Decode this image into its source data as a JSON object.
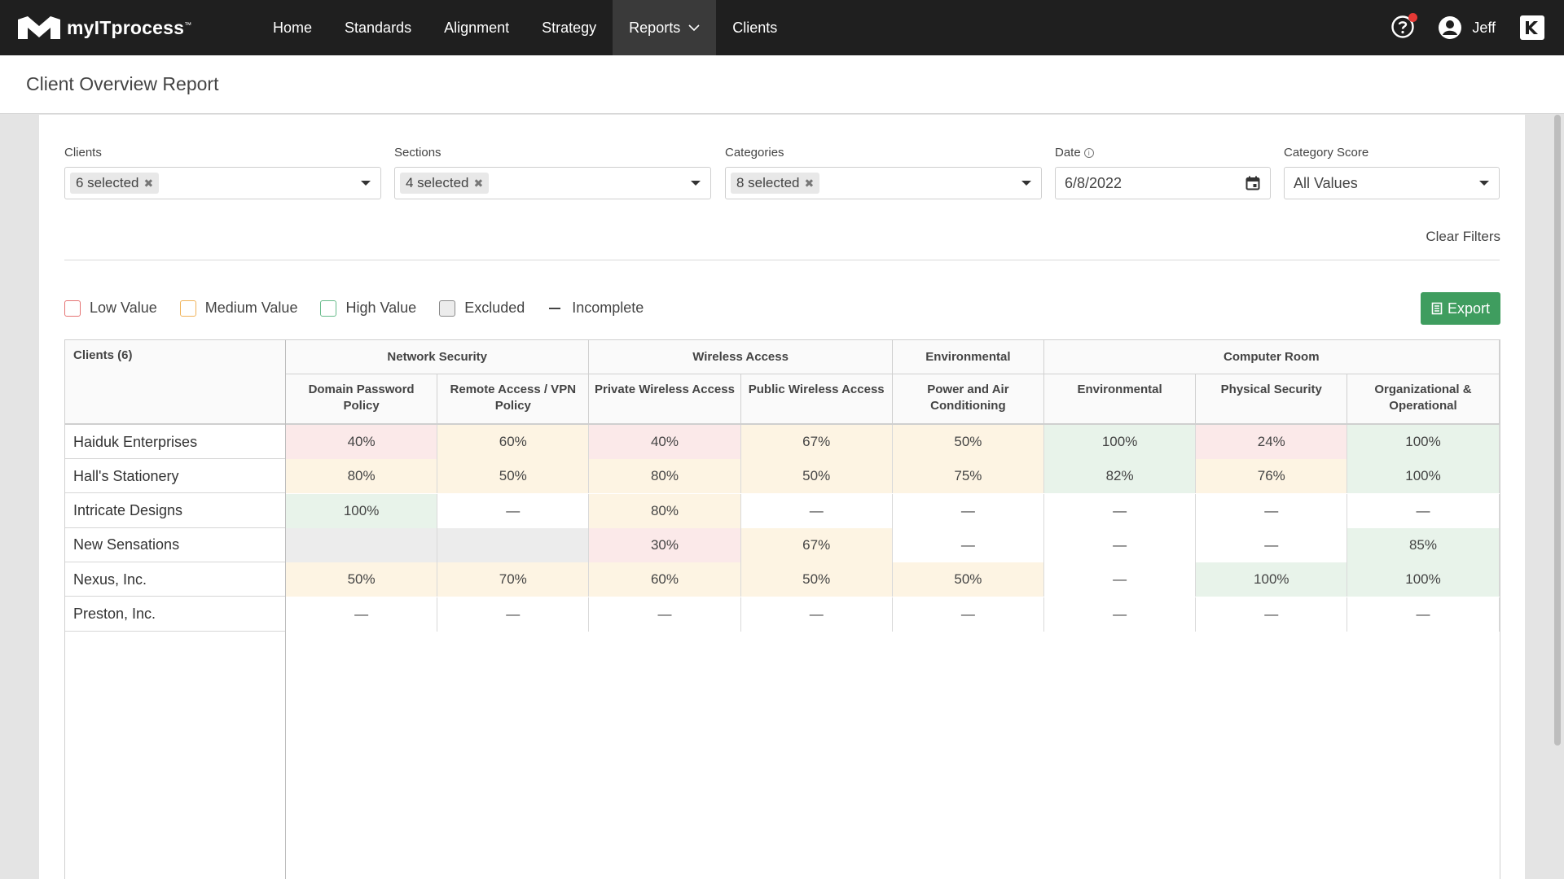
{
  "app": {
    "logo_text": "myITprocess",
    "logo_tm": "™"
  },
  "nav": {
    "items": [
      {
        "label": "Home"
      },
      {
        "label": "Standards"
      },
      {
        "label": "Alignment"
      },
      {
        "label": "Strategy"
      },
      {
        "label": "Reports",
        "active": true
      },
      {
        "label": "Clients"
      }
    ],
    "user": "Jeff"
  },
  "page": {
    "title": "Client Overview Report"
  },
  "filters": {
    "clients": {
      "label": "Clients",
      "chip": "6 selected"
    },
    "sections": {
      "label": "Sections",
      "chip": "4 selected"
    },
    "categories": {
      "label": "Categories",
      "chip": "8 selected"
    },
    "date": {
      "label": "Date",
      "value": "6/8/2022"
    },
    "category_score": {
      "label": "Category Score",
      "value": "All Values"
    },
    "clear": "Clear Filters"
  },
  "legend": {
    "low": "Low Value",
    "medium": "Medium Value",
    "high": "High Value",
    "excluded": "Excluded",
    "incomplete": "Incomplete"
  },
  "export_label": "Export",
  "table": {
    "clients_header": "Clients (6)",
    "groups": [
      {
        "label": "Network Security"
      },
      {
        "label": "Wireless Access"
      },
      {
        "label": "Environmental"
      },
      {
        "label": "Computer Room"
      }
    ],
    "columns": [
      "Domain Password Policy",
      "Remote Access / VPN Policy",
      "Private Wireless Access",
      "Public Wireless Access",
      "Power and Air Conditioning",
      "Environmental",
      "Physical Security",
      "Organizational & Operational"
    ],
    "rows": [
      {
        "name": "Haiduk Enterprises",
        "cells": [
          {
            "v": "40%",
            "s": "low"
          },
          {
            "v": "60%",
            "s": "med"
          },
          {
            "v": "40%",
            "s": "low"
          },
          {
            "v": "67%",
            "s": "med"
          },
          {
            "v": "50%",
            "s": "med"
          },
          {
            "v": "100%",
            "s": "high"
          },
          {
            "v": "24%",
            "s": "low"
          },
          {
            "v": "100%",
            "s": "high"
          }
        ]
      },
      {
        "name": "Hall's Stationery",
        "cells": [
          {
            "v": "80%",
            "s": "med"
          },
          {
            "v": "50%",
            "s": "med"
          },
          {
            "v": "80%",
            "s": "med"
          },
          {
            "v": "50%",
            "s": "med"
          },
          {
            "v": "75%",
            "s": "med"
          },
          {
            "v": "82%",
            "s": "high"
          },
          {
            "v": "76%",
            "s": "med"
          },
          {
            "v": "100%",
            "s": "high"
          }
        ]
      },
      {
        "name": "Intricate Designs",
        "cells": [
          {
            "v": "100%",
            "s": "high"
          },
          {
            "v": "—",
            "s": "none"
          },
          {
            "v": "80%",
            "s": "med"
          },
          {
            "v": "—",
            "s": "none"
          },
          {
            "v": "—",
            "s": "none"
          },
          {
            "v": "—",
            "s": "none"
          },
          {
            "v": "—",
            "s": "none"
          },
          {
            "v": "—",
            "s": "none"
          }
        ]
      },
      {
        "name": "New Sensations",
        "cells": [
          {
            "v": "",
            "s": "exc"
          },
          {
            "v": "",
            "s": "exc"
          },
          {
            "v": "30%",
            "s": "low"
          },
          {
            "v": "67%",
            "s": "med"
          },
          {
            "v": "—",
            "s": "none"
          },
          {
            "v": "—",
            "s": "none"
          },
          {
            "v": "—",
            "s": "none"
          },
          {
            "v": "85%",
            "s": "high"
          }
        ]
      },
      {
        "name": "Nexus, Inc.",
        "cells": [
          {
            "v": "50%",
            "s": "med"
          },
          {
            "v": "70%",
            "s": "med"
          },
          {
            "v": "60%",
            "s": "med"
          },
          {
            "v": "50%",
            "s": "med"
          },
          {
            "v": "50%",
            "s": "med"
          },
          {
            "v": "—",
            "s": "none"
          },
          {
            "v": "100%",
            "s": "high"
          },
          {
            "v": "100%",
            "s": "high"
          }
        ]
      },
      {
        "name": "Preston, Inc.",
        "cells": [
          {
            "v": "—",
            "s": "none"
          },
          {
            "v": "—",
            "s": "none"
          },
          {
            "v": "—",
            "s": "none"
          },
          {
            "v": "—",
            "s": "none"
          },
          {
            "v": "—",
            "s": "none"
          },
          {
            "v": "—",
            "s": "none"
          },
          {
            "v": "—",
            "s": "none"
          },
          {
            "v": "—",
            "s": "none"
          }
        ]
      }
    ]
  }
}
